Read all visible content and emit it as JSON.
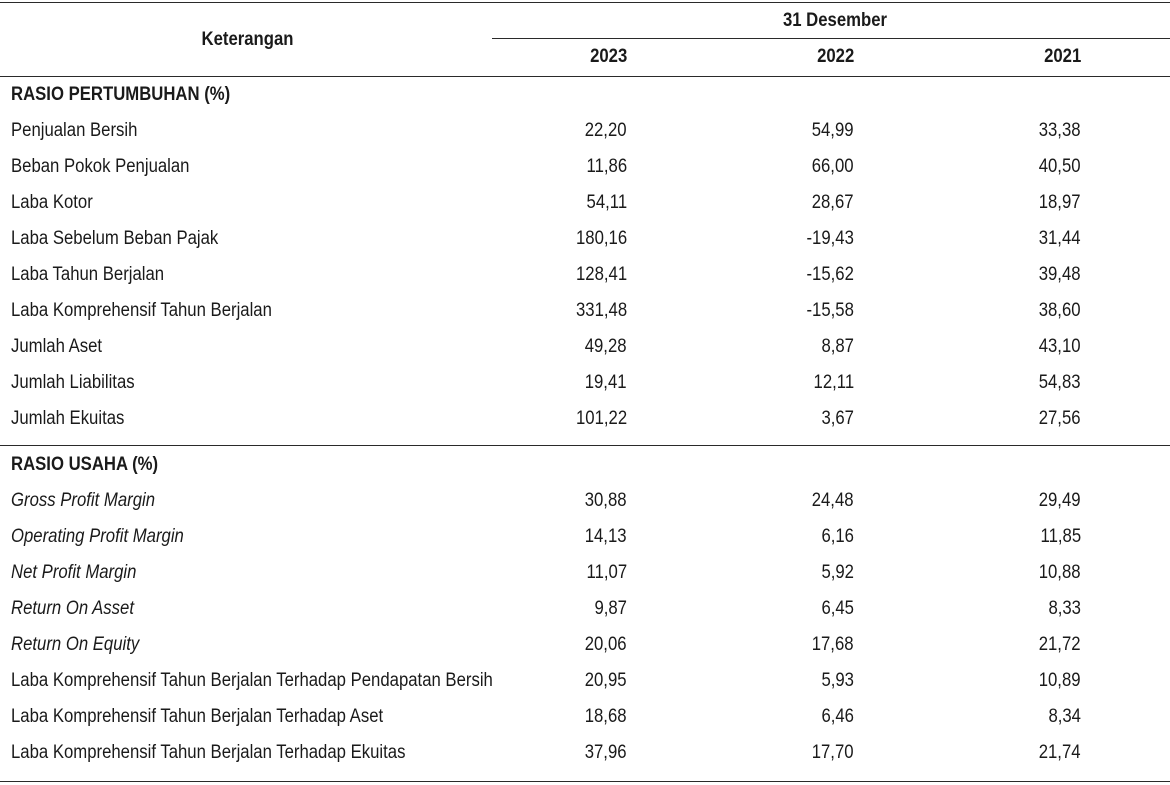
{
  "header": {
    "label": "Keterangan",
    "period": "31 Desember",
    "years": [
      "2023",
      "2022",
      "2021"
    ]
  },
  "sections": [
    {
      "title": "RASIO PERTUMBUHAN (%)",
      "rows": [
        {
          "label": "Penjualan Bersih",
          "values": [
            "22,20",
            "54,99",
            "33,38"
          ],
          "italic": false
        },
        {
          "label": "Beban Pokok Penjualan",
          "values": [
            "11,86",
            "66,00",
            "40,50"
          ],
          "italic": false
        },
        {
          "label": "Laba Kotor",
          "values": [
            "54,11",
            "28,67",
            "18,97"
          ],
          "italic": false
        },
        {
          "label": "Laba Sebelum Beban Pajak",
          "values": [
            "180,16",
            "-19,43",
            "31,44"
          ],
          "italic": false
        },
        {
          "label": "Laba Tahun Berjalan",
          "values": [
            "128,41",
            "-15,62",
            "39,48"
          ],
          "italic": false
        },
        {
          "label": "Laba Komprehensif Tahun Berjalan",
          "values": [
            "331,48",
            "-15,58",
            "38,60"
          ],
          "italic": false
        },
        {
          "label": "Jumlah Aset",
          "values": [
            "49,28",
            "8,87",
            "43,10"
          ],
          "italic": false
        },
        {
          "label": "Jumlah Liabilitas",
          "values": [
            "19,41",
            "12,11",
            "54,83"
          ],
          "italic": false
        },
        {
          "label": "Jumlah Ekuitas",
          "values": [
            "101,22",
            "3,67",
            "27,56"
          ],
          "italic": false
        }
      ]
    },
    {
      "title": "RASIO USAHA (%)",
      "rows": [
        {
          "label": "Gross Profit Margin",
          "values": [
            "30,88",
            "24,48",
            "29,49"
          ],
          "italic": true
        },
        {
          "label": "Operating Profit Margin",
          "values": [
            "14,13",
            "6,16",
            "11,85"
          ],
          "italic": true
        },
        {
          "label": "Net Profit Margin",
          "values": [
            "11,07",
            "5,92",
            "10,88"
          ],
          "italic": true
        },
        {
          "label": "Return On Asset",
          "values": [
            "9,87",
            "6,45",
            "8,33"
          ],
          "italic": true
        },
        {
          "label": "Return On Equity",
          "values": [
            "20,06",
            "17,68",
            "21,72"
          ],
          "italic": true
        },
        {
          "label": "Laba Komprehensif Tahun Berjalan Terhadap Pendapatan Bersih",
          "values": [
            "20,95",
            "5,93",
            "10,89"
          ],
          "italic": false
        },
        {
          "label": "Laba Komprehensif Tahun Berjalan Terhadap Aset",
          "values": [
            "18,68",
            "6,46",
            "8,34"
          ],
          "italic": false
        },
        {
          "label": "Laba Komprehensif Tahun Berjalan Terhadap Ekuitas",
          "values": [
            "37,96",
            "17,70",
            "21,74"
          ],
          "italic": false
        }
      ]
    }
  ]
}
